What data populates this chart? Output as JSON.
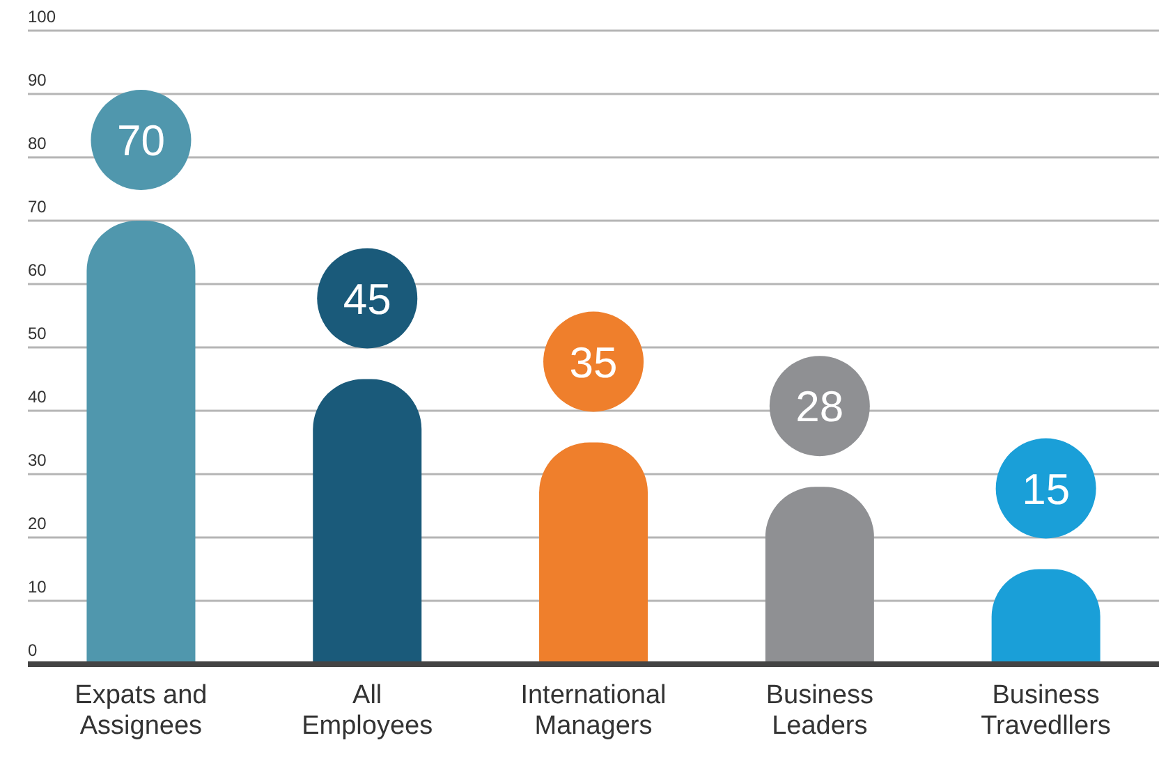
{
  "chart_data": {
    "type": "bar",
    "categories": [
      "Expats and\nAssignees",
      "All\nEmployees",
      "International\nManagers",
      "Business\nLeaders",
      "Business\nTravedllers"
    ],
    "values": [
      70,
      45,
      35,
      28,
      15
    ],
    "colors": [
      "#5097ad",
      "#1a5a7a",
      "#ef7f2c",
      "#8f9093",
      "#1a9fd8"
    ],
    "ylim": [
      0,
      100
    ],
    "yticks": [
      0,
      10,
      20,
      30,
      40,
      50,
      60,
      70,
      80,
      90,
      100
    ],
    "grid": "y",
    "data_labels": true
  }
}
